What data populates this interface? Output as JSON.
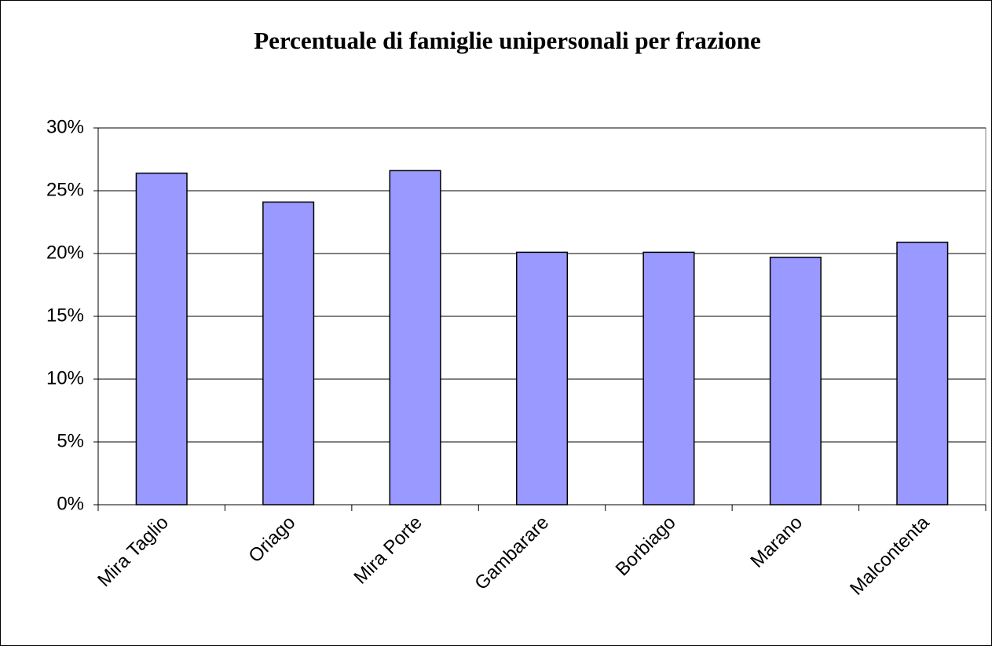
{
  "chart_data": {
    "type": "bar",
    "title": "Percentuale di famiglie unipersonali per frazione",
    "categories": [
      "Mira Taglio",
      "Oriago",
      "Mira Porte",
      "Gambarare",
      "Borbiago",
      "Marano",
      "Malcontenta"
    ],
    "values": [
      26.4,
      24.1,
      26.6,
      20.1,
      20.1,
      19.7,
      20.9
    ],
    "color": "#9999ff",
    "ylim": [
      0,
      30
    ],
    "yticks": [
      {
        "value": 0,
        "label": "0%"
      },
      {
        "value": 5,
        "label": "5%"
      },
      {
        "value": 10,
        "label": "10%"
      },
      {
        "value": 15,
        "label": "15%"
      },
      {
        "value": 20,
        "label": "20%"
      },
      {
        "value": 25,
        "label": "25%"
      },
      {
        "value": 30,
        "label": "30%"
      }
    ],
    "grid": true
  }
}
